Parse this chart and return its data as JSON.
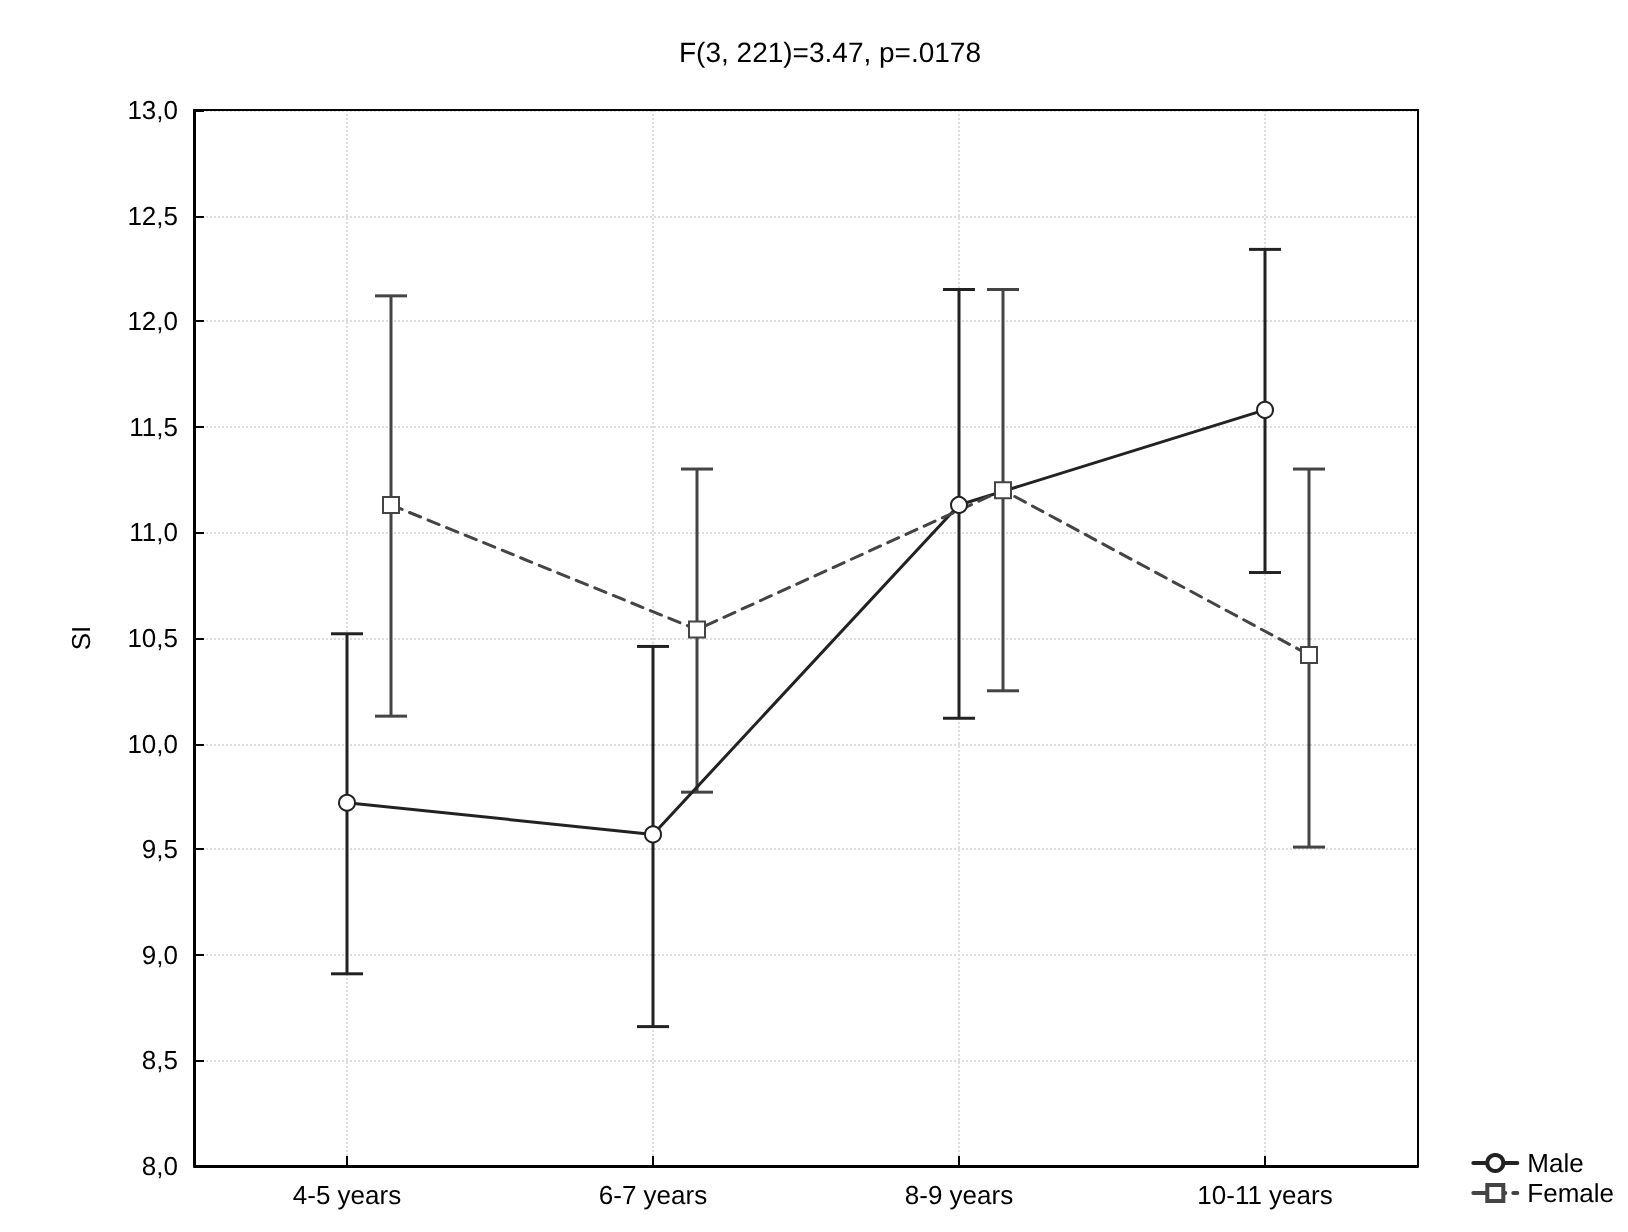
{
  "chart_data": {
    "type": "line",
    "title": "F(3, 221)=3.47, p=.0178",
    "ylabel": "SI",
    "categories": [
      "4-5 years",
      "6-7 years",
      "8-9 years",
      "10-11 years"
    ],
    "series": [
      {
        "name": "Male",
        "color": "#222222",
        "marker": "circle",
        "line_style": "solid",
        "values": [
          9.72,
          9.57,
          11.13,
          11.58
        ],
        "errors": [
          [
            8.91,
            10.52
          ],
          [
            8.66,
            10.46
          ],
          [
            10.12,
            12.15
          ],
          [
            10.81,
            12.34
          ]
        ]
      },
      {
        "name": "Female",
        "color": "#444444",
        "marker": "square",
        "line_style": "dashed",
        "values": [
          11.13,
          10.54,
          11.2,
          10.42
        ],
        "errors": [
          [
            10.13,
            12.12
          ],
          [
            9.77,
            11.3
          ],
          [
            10.25,
            12.15
          ],
          [
            9.51,
            11.3
          ]
        ]
      }
    ],
    "ylim": [
      8,
      13
    ],
    "yticks": [
      {
        "value": 8,
        "label": "8,0"
      },
      {
        "value": 8.5,
        "label": "8,5"
      },
      {
        "value": 9,
        "label": "9,0"
      },
      {
        "value": 9.5,
        "label": "9,5"
      },
      {
        "value": 10,
        "label": "10,0"
      },
      {
        "value": 10.5,
        "label": "10,5"
      },
      {
        "value": 11,
        "label": "11,0"
      },
      {
        "value": 11.5,
        "label": "11,5"
      },
      {
        "value": 12,
        "label": "12,0"
      },
      {
        "value": 12.5,
        "label": "12,5"
      },
      {
        "value": 13,
        "label": "13,0"
      }
    ],
    "grid": true,
    "legend": "bottom right"
  }
}
